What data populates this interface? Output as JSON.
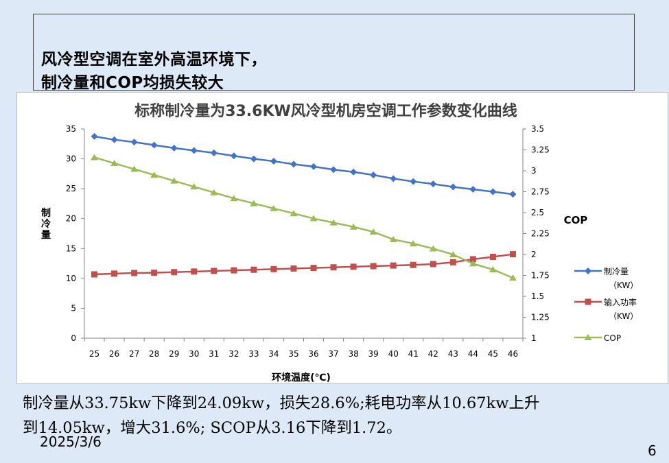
{
  "headline": {
    "line1": "风冷型空调在室外高温环境下，",
    "line2": "制冷量和COP均损失较大"
  },
  "chart_data": {
    "type": "line",
    "title": "标称制冷量为33.6KW风冷型机房空调工作参数变化曲线",
    "xlabel": "环境温度(℃)",
    "ylabel": "制冷量",
    "y2label": "COP",
    "x": [
      25,
      26,
      27,
      28,
      29,
      30,
      31,
      32,
      33,
      34,
      35,
      36,
      37,
      38,
      39,
      40,
      41,
      42,
      43,
      44,
      45,
      46
    ],
    "ylim": [
      0,
      35
    ],
    "yticks": [
      "0",
      "5",
      "10",
      "15",
      "20",
      "25",
      "30",
      "35"
    ],
    "y2lim": [
      1,
      3.5
    ],
    "y2ticks": [
      "1",
      "1.25",
      "1.5",
      "1.75",
      "2",
      "2.25",
      "2.5",
      "2.75",
      "3",
      "3.25",
      "3.5"
    ],
    "grid": false,
    "legend_position": "right",
    "series": [
      {
        "name_line1": "制冷量",
        "name_line2": "（KW）",
        "axis": "left",
        "color": "#4472c4",
        "marker": "diamond",
        "values": [
          33.75,
          33.2,
          32.8,
          32.3,
          31.8,
          31.4,
          31.0,
          30.5,
          30.0,
          29.6,
          29.1,
          28.7,
          28.2,
          27.8,
          27.3,
          26.7,
          26.2,
          25.8,
          25.3,
          24.9,
          24.5,
          24.09
        ]
      },
      {
        "name_line1": "输入功率",
        "name_line2": "（KW）",
        "axis": "left",
        "color": "#c0504d",
        "marker": "square",
        "values": [
          10.67,
          10.8,
          10.9,
          10.95,
          11.05,
          11.15,
          11.25,
          11.35,
          11.45,
          11.55,
          11.65,
          11.75,
          11.85,
          11.95,
          12.05,
          12.15,
          12.25,
          12.4,
          12.7,
          13.2,
          13.6,
          14.05
        ]
      },
      {
        "name_line1": "COP",
        "name_line2": "",
        "axis": "right",
        "color": "#9bbb59",
        "marker": "triangle",
        "values": [
          3.16,
          3.09,
          3.02,
          2.95,
          2.88,
          2.81,
          2.74,
          2.67,
          2.61,
          2.55,
          2.49,
          2.43,
          2.38,
          2.33,
          2.27,
          2.18,
          2.13,
          2.07,
          2.0,
          1.89,
          1.82,
          1.72
        ]
      }
    ]
  },
  "summary": {
    "line1": "制冷量从33.75kw下降到24.09kw，损失28.6%;耗电功率从10.67kw上升",
    "line2": "到14.05kw，增大31.6%; SCOP从3.16下降到1.72。"
  },
  "footer": {
    "date": "2025/3/6",
    "page": "6"
  }
}
